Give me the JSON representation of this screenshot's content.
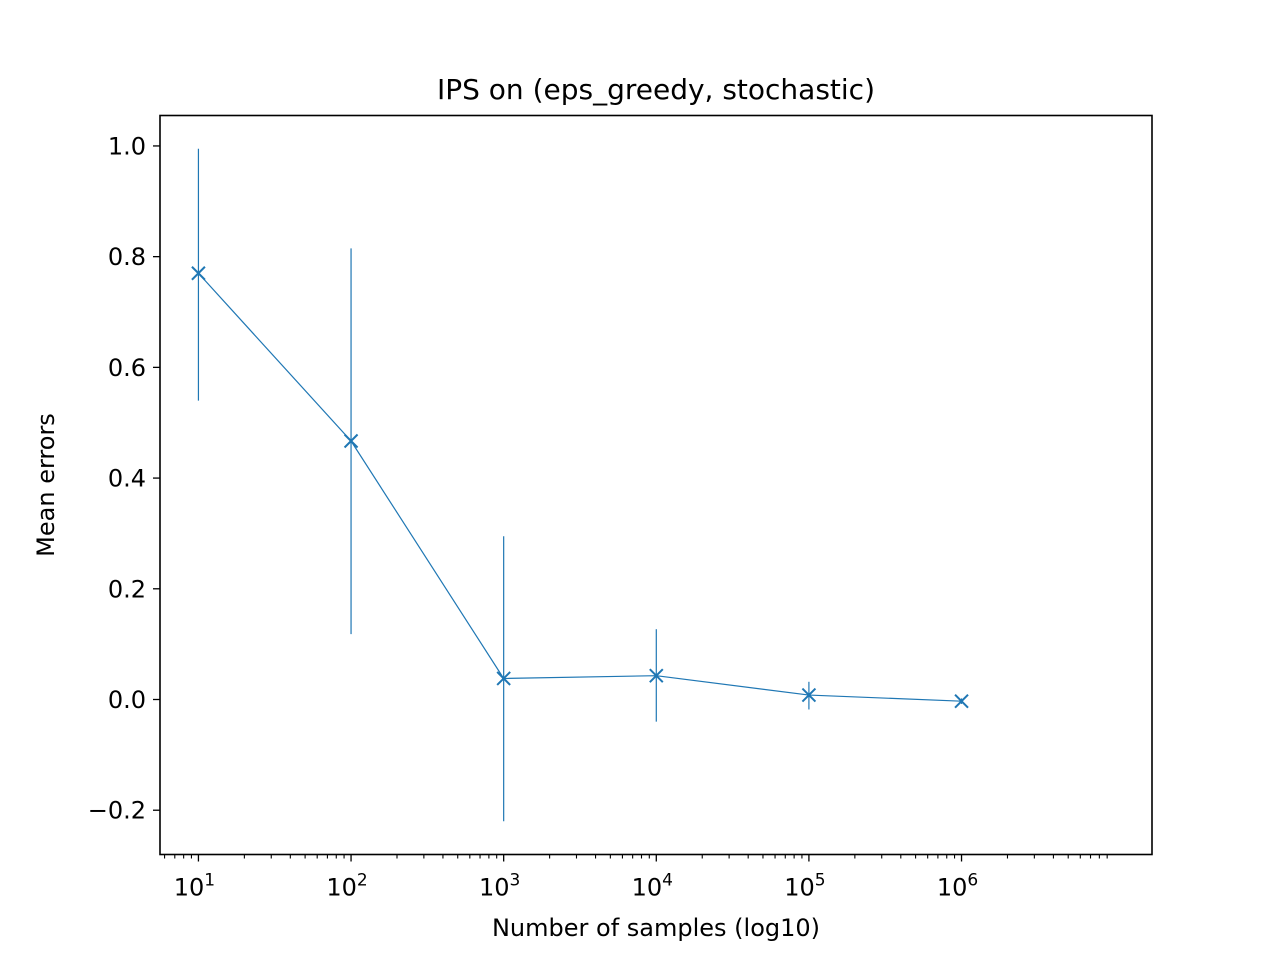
{
  "chart_data": {
    "type": "line",
    "title": "IPS on (eps_greedy, stochastic)",
    "xlabel": "Number of samples (log10)",
    "ylabel": "Mean errors",
    "x_scale": "log10",
    "xlim": [
      5.6,
      17700000
    ],
    "ylim": [
      -0.28,
      1.055
    ],
    "x_ticks": [
      {
        "value": 10,
        "base": "10",
        "exp": "1"
      },
      {
        "value": 100,
        "base": "10",
        "exp": "2"
      },
      {
        "value": 1000,
        "base": "10",
        "exp": "3"
      },
      {
        "value": 10000,
        "base": "10",
        "exp": "4"
      },
      {
        "value": 100000,
        "base": "10",
        "exp": "5"
      },
      {
        "value": 1000000,
        "base": "10",
        "exp": "6"
      }
    ],
    "y_ticks": [
      {
        "value": -0.2,
        "label": "−0.2"
      },
      {
        "value": 0.0,
        "label": "0.0"
      },
      {
        "value": 0.2,
        "label": "0.2"
      },
      {
        "value": 0.4,
        "label": "0.4"
      },
      {
        "value": 0.6,
        "label": "0.6"
      },
      {
        "value": 0.8,
        "label": "0.8"
      },
      {
        "value": 1.0,
        "label": "1.0"
      }
    ],
    "grid": false,
    "marker": "x",
    "series": [
      {
        "x": [
          10,
          100,
          1000,
          10000,
          100000,
          1000000
        ],
        "y": [
          0.77,
          0.467,
          0.038,
          0.043,
          0.008,
          -0.003
        ],
        "error_low": [
          0.54,
          0.118,
          -0.22,
          -0.04,
          -0.018,
          -0.008
        ],
        "error_high": [
          0.995,
          0.815,
          0.295,
          0.127,
          0.032,
          0.002
        ],
        "color": "#1f77b4"
      }
    ]
  }
}
